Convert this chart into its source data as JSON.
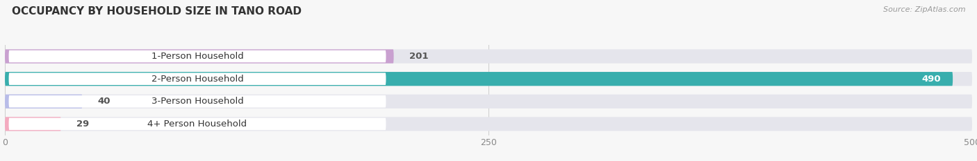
{
  "title": "OCCUPANCY BY HOUSEHOLD SIZE IN TANO ROAD",
  "source": "Source: ZipAtlas.com",
  "categories": [
    "1-Person Household",
    "2-Person Household",
    "3-Person Household",
    "4+ Person Household"
  ],
  "values": [
    201,
    490,
    40,
    29
  ],
  "bar_colors": [
    "#c9a0d0",
    "#38aead",
    "#b8bce8",
    "#f4aabf"
  ],
  "bar_label_colors": [
    "#555555",
    "#ffffff",
    "#555555",
    "#555555"
  ],
  "xlim": [
    0,
    500
  ],
  "xticks": [
    0,
    250,
    500
  ],
  "background_color": "#f7f7f7",
  "bar_bg_color": "#e5e5ec",
  "title_fontsize": 11,
  "label_fontsize": 9.5,
  "value_fontsize": 9.5
}
